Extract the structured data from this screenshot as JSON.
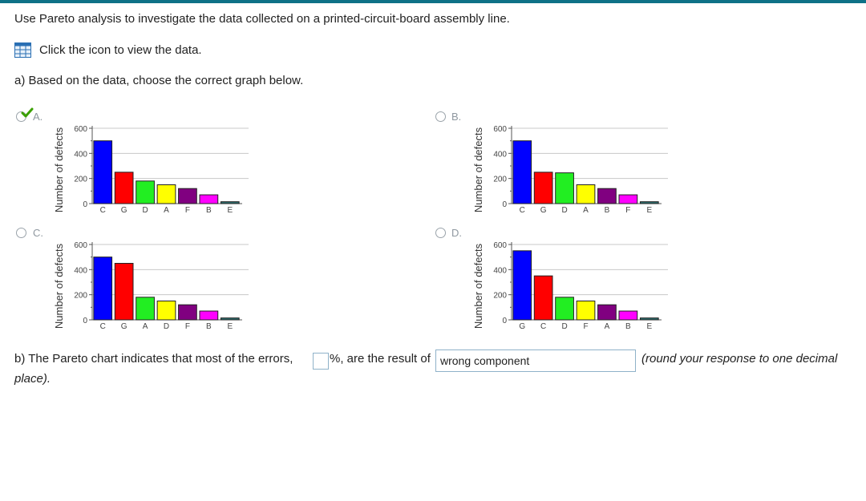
{
  "question": {
    "intro": "Use Pareto analysis to investigate the data collected on a printed-circuit-board assembly line.",
    "data_link": "Click the icon to view the data.",
    "part_a": "a) Based on the data, choose the correct graph below.",
    "part_b_prefix": "b) The Pareto chart indicates that most of the errors,",
    "part_b_mid": "%, are the result of",
    "part_b_selected": "wrong component",
    "part_b_note": "(round your response to one decimal",
    "part_b_note2": "place)."
  },
  "options": [
    {
      "label": "A.",
      "selected": true
    },
    {
      "label": "B.",
      "selected": false
    },
    {
      "label": "C.",
      "selected": false
    },
    {
      "label": "D.",
      "selected": false
    }
  ],
  "chart_data": [
    {
      "type": "bar",
      "option": "A",
      "ylabel": "Number of defects",
      "yticks": [
        "600",
        "400",
        "200",
        "0"
      ],
      "ylim": [
        0,
        600
      ],
      "categories": [
        "C",
        "G",
        "D",
        "A",
        "F",
        "B",
        "E"
      ],
      "values": [
        500,
        250,
        180,
        150,
        120,
        70,
        15
      ],
      "colors": [
        "#0000ff",
        "#ff0000",
        "#22ee22",
        "#ffff00",
        "#800080",
        "#ff00ff",
        "#2e6f6f"
      ]
    },
    {
      "type": "bar",
      "option": "B",
      "ylabel": "Number of defects",
      "yticks": [
        "600",
        "400",
        "200",
        "0"
      ],
      "ylim": [
        0,
        600
      ],
      "categories": [
        "C",
        "G",
        "D",
        "A",
        "B",
        "F",
        "E"
      ],
      "values": [
        500,
        250,
        245,
        150,
        120,
        70,
        15
      ],
      "colors": [
        "#0000ff",
        "#ff0000",
        "#22ee22",
        "#ffff00",
        "#800080",
        "#ff00ff",
        "#2e6f6f"
      ]
    },
    {
      "type": "bar",
      "option": "C",
      "ylabel": "Number of defects",
      "yticks": [
        "600",
        "400",
        "200",
        "0"
      ],
      "ylim": [
        0,
        600
      ],
      "categories": [
        "C",
        "G",
        "A",
        "D",
        "F",
        "B",
        "E"
      ],
      "values": [
        500,
        450,
        180,
        150,
        120,
        70,
        15
      ],
      "colors": [
        "#0000ff",
        "#ff0000",
        "#22ee22",
        "#ffff00",
        "#800080",
        "#ff00ff",
        "#2e6f6f"
      ]
    },
    {
      "type": "bar",
      "option": "D",
      "ylabel": "Number of defects",
      "yticks": [
        "600",
        "400",
        "200",
        "0"
      ],
      "ylim": [
        0,
        600
      ],
      "categories": [
        "G",
        "C",
        "D",
        "F",
        "A",
        "B",
        "E"
      ],
      "values": [
        550,
        350,
        180,
        150,
        120,
        70,
        15
      ],
      "colors": [
        "#0000ff",
        "#ff0000",
        "#22ee22",
        "#ffff00",
        "#800080",
        "#ff00ff",
        "#2e6f6f"
      ]
    }
  ]
}
